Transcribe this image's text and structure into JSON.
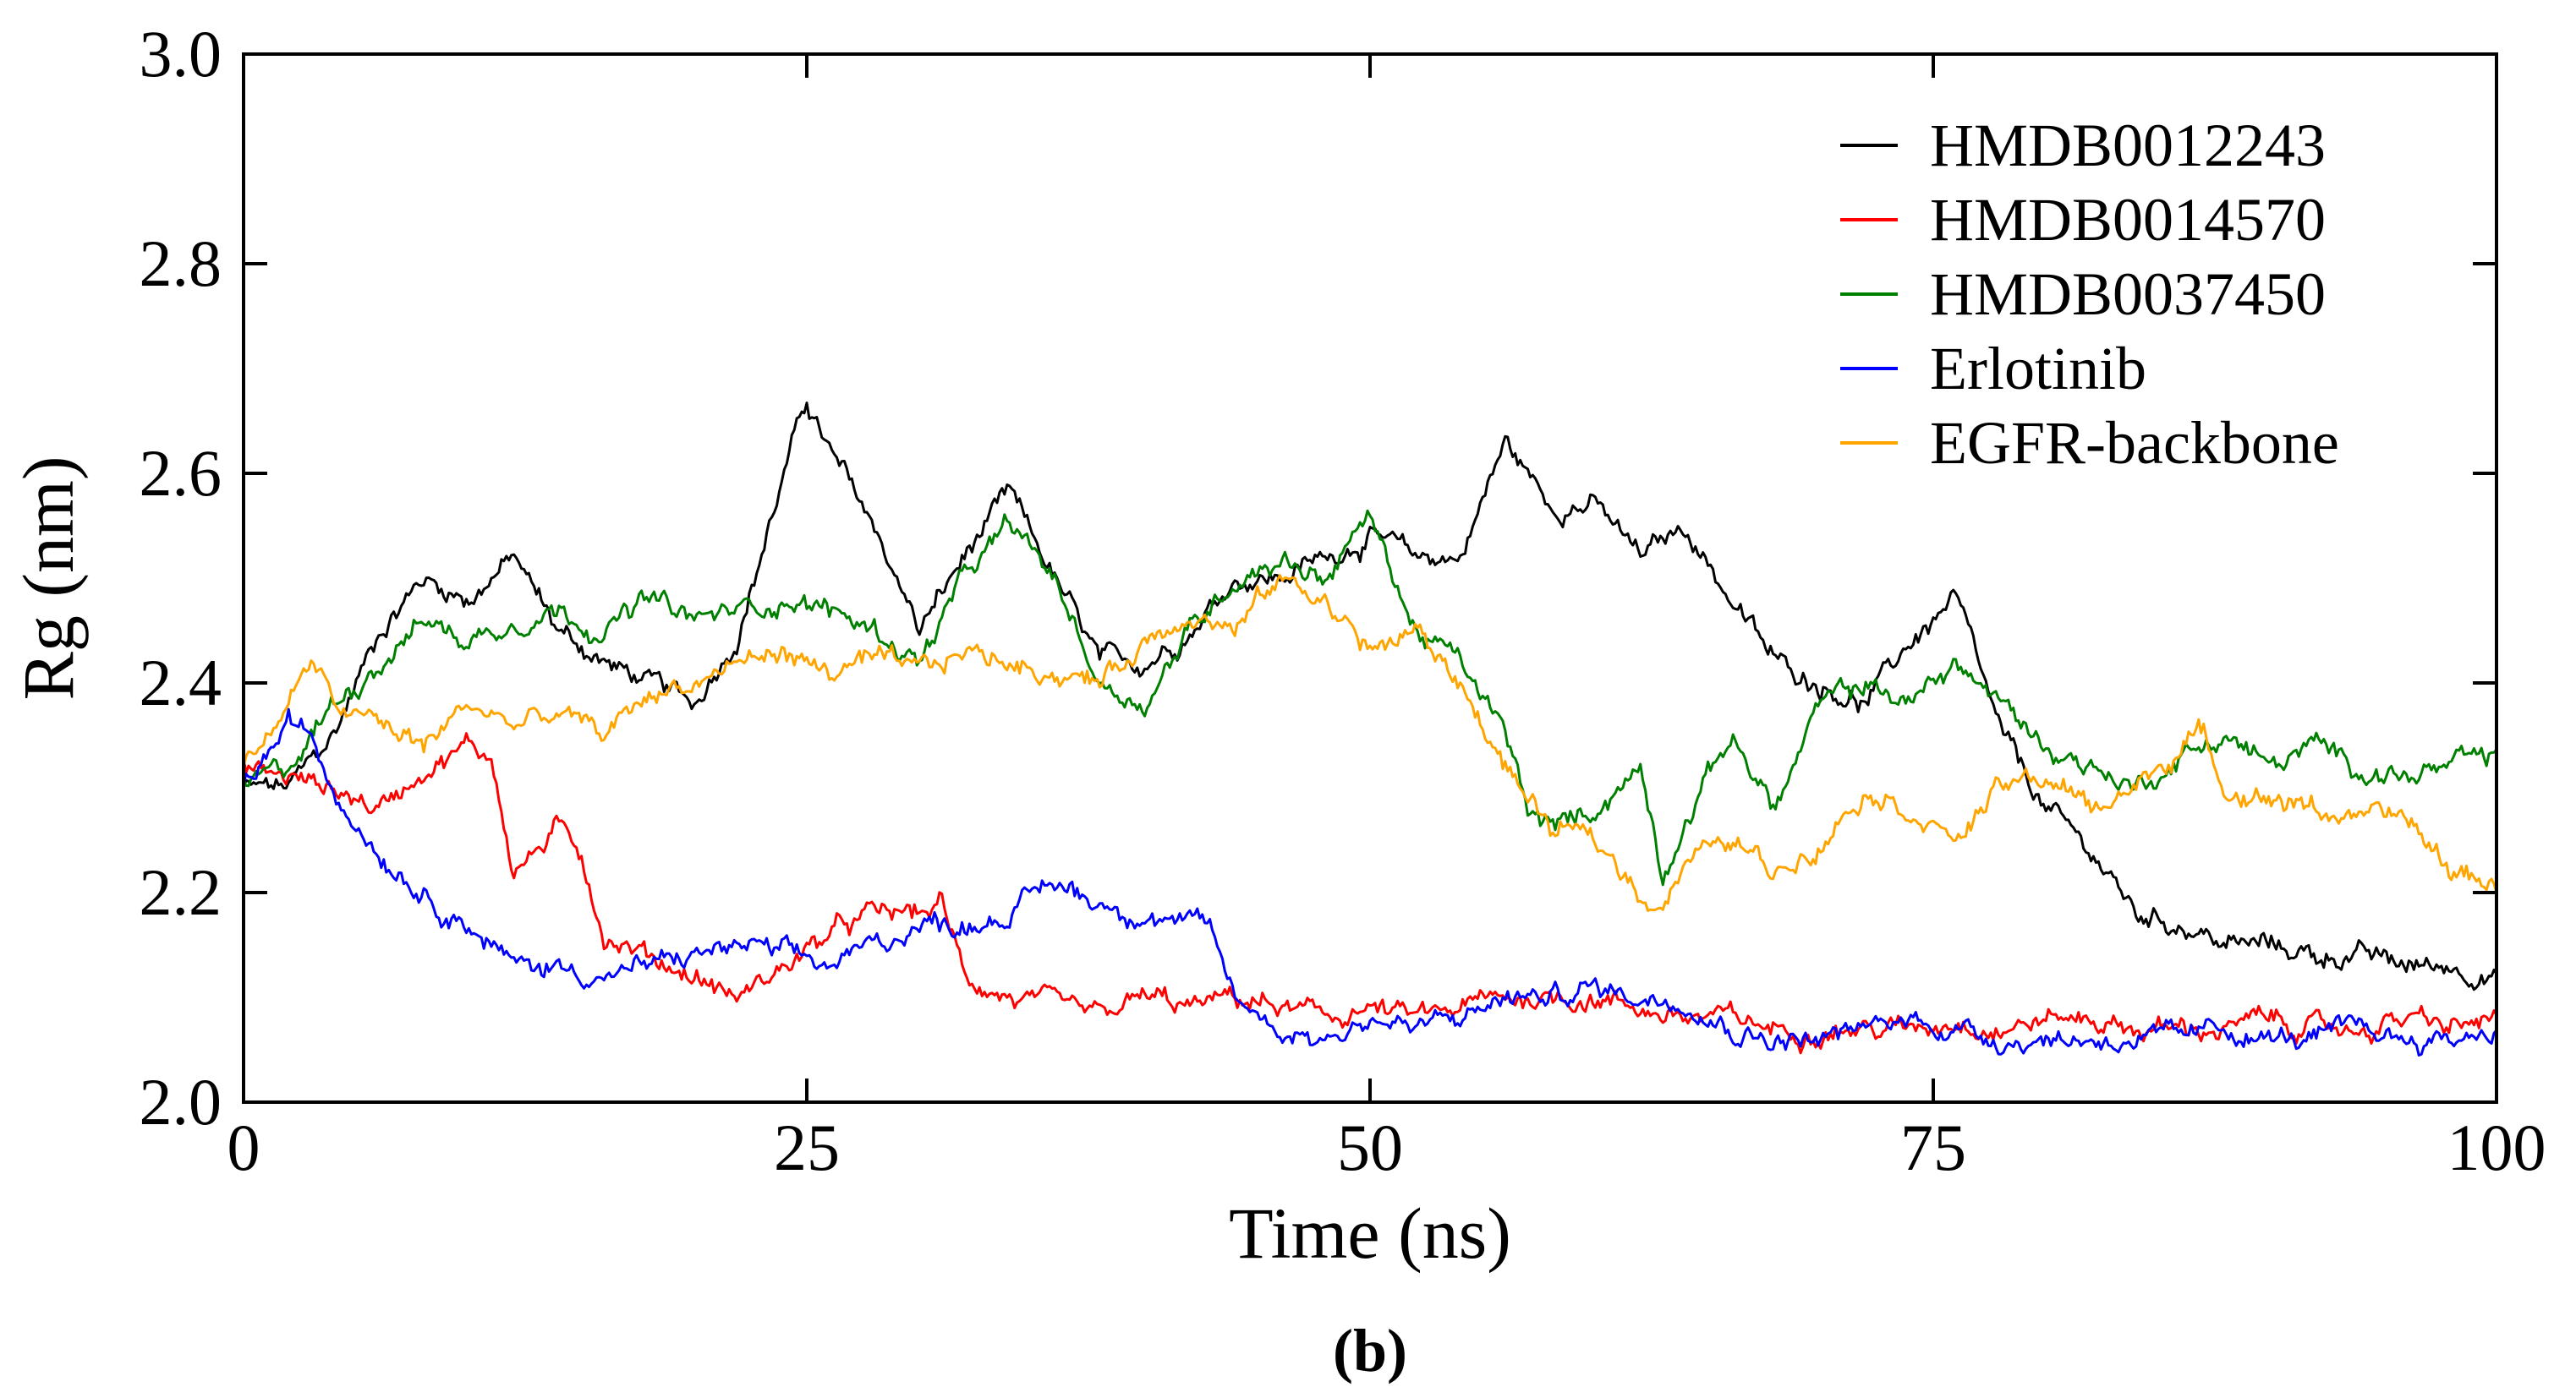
{
  "chart_data": {
    "type": "line",
    "title": "",
    "xlabel": "Time (ns)",
    "ylabel": "Rg (nm)",
    "caption": "(b)",
    "xlim": [
      0,
      100
    ],
    "ylim": [
      2.0,
      3.0
    ],
    "xticks": [
      0,
      25,
      50,
      75,
      100
    ],
    "xtick_labels": [
      "0",
      "25",
      "50",
      "75",
      "100"
    ],
    "yticks": [
      2.0,
      2.2,
      2.4,
      2.6,
      2.8,
      3.0
    ],
    "ytick_labels": [
      "2.0",
      "2.2",
      "2.4",
      "2.6",
      "2.8",
      "3.0"
    ],
    "grid": false,
    "legend_position": "top-right",
    "series": [
      {
        "name": "HMDB0012243",
        "color": "#000000",
        "x": [
          0,
          2,
          4,
          6,
          8,
          10,
          12,
          14,
          16,
          18,
          20,
          22,
          24,
          25,
          26,
          28,
          30,
          32,
          34,
          36,
          38,
          40,
          42,
          44,
          46,
          48,
          50,
          52,
          54,
          56,
          58,
          60,
          62,
          64,
          66,
          68,
          70,
          72,
          74,
          76,
          78,
          80,
          82,
          84,
          86,
          88,
          90,
          92,
          94,
          96,
          98,
          100
        ],
        "values": [
          2.3,
          2.3,
          2.35,
          2.45,
          2.5,
          2.48,
          2.52,
          2.45,
          2.42,
          2.4,
          2.38,
          2.45,
          2.6,
          2.67,
          2.62,
          2.55,
          2.45,
          2.52,
          2.58,
          2.5,
          2.42,
          2.42,
          2.45,
          2.5,
          2.5,
          2.52,
          2.54,
          2.52,
          2.52,
          2.63,
          2.57,
          2.57,
          2.52,
          2.55,
          2.48,
          2.42,
          2.4,
          2.38,
          2.44,
          2.48,
          2.35,
          2.28,
          2.24,
          2.18,
          2.17,
          2.15,
          2.15,
          2.14,
          2.14,
          2.13,
          2.13,
          2.12
        ]
      },
      {
        "name": "HMDB0014570",
        "color": "#ff0000",
        "x": [
          0,
          2,
          4,
          6,
          8,
          10,
          11,
          12,
          13,
          14,
          15,
          16,
          18,
          20,
          22,
          24,
          26,
          28,
          30,
          31,
          32,
          34,
          36,
          38,
          40,
          42,
          44,
          46,
          48,
          50,
          52,
          54,
          56,
          58,
          60,
          62,
          64,
          66,
          68,
          70,
          72,
          74,
          76,
          78,
          80,
          82,
          84,
          86,
          88,
          90,
          92,
          94,
          96,
          98,
          100
        ],
        "values": [
          2.32,
          2.31,
          2.3,
          2.28,
          2.32,
          2.34,
          2.33,
          2.22,
          2.24,
          2.26,
          2.24,
          2.16,
          2.14,
          2.12,
          2.1,
          2.13,
          2.16,
          2.18,
          2.18,
          2.19,
          2.12,
          2.1,
          2.09,
          2.08,
          2.1,
          2.09,
          2.1,
          2.09,
          2.08,
          2.09,
          2.08,
          2.09,
          2.1,
          2.1,
          2.1,
          2.09,
          2.08,
          2.08,
          2.07,
          2.07,
          2.07,
          2.07,
          2.08,
          2.07,
          2.08,
          2.08,
          2.07,
          2.07,
          2.07,
          2.08,
          2.07,
          2.07,
          2.08,
          2.07,
          2.08
        ]
      },
      {
        "name": "HMDB0037450",
        "color": "#008000",
        "x": [
          0,
          2,
          4,
          6,
          8,
          10,
          12,
          14,
          16,
          18,
          20,
          22,
          24,
          26,
          28,
          30,
          32,
          34,
          36,
          38,
          40,
          42,
          44,
          46,
          48,
          50,
          52,
          54,
          56,
          57,
          58,
          60,
          62,
          63,
          64,
          66,
          68,
          70,
          72,
          74,
          76,
          78,
          80,
          82,
          84,
          86,
          88,
          90,
          92,
          94,
          96,
          98,
          100
        ],
        "values": [
          2.3,
          2.32,
          2.38,
          2.42,
          2.46,
          2.44,
          2.46,
          2.47,
          2.45,
          2.48,
          2.46,
          2.47,
          2.48,
          2.47,
          2.45,
          2.42,
          2.5,
          2.55,
          2.5,
          2.4,
          2.38,
          2.45,
          2.5,
          2.52,
          2.5,
          2.56,
          2.45,
          2.42,
          2.35,
          2.28,
          2.26,
          2.28,
          2.32,
          2.22,
          2.27,
          2.35,
          2.28,
          2.38,
          2.4,
          2.38,
          2.42,
          2.38,
          2.34,
          2.32,
          2.3,
          2.33,
          2.35,
          2.32,
          2.34,
          2.32,
          2.31,
          2.32,
          2.33
        ]
      },
      {
        "name": "Erlotinib",
        "color": "#0000ff",
        "x": [
          0,
          1,
          2,
          3,
          4,
          6,
          8,
          10,
          12,
          14,
          16,
          18,
          20,
          22,
          24,
          26,
          28,
          30,
          32,
          34,
          36,
          38,
          40,
          42,
          43,
          44,
          46,
          48,
          50,
          52,
          54,
          56,
          58,
          60,
          62,
          64,
          66,
          68,
          70,
          72,
          74,
          76,
          78,
          80,
          82,
          84,
          86,
          88,
          90,
          92,
          94,
          96,
          98,
          100
        ],
        "values": [
          2.3,
          2.33,
          2.36,
          2.35,
          2.3,
          2.24,
          2.2,
          2.17,
          2.13,
          2.13,
          2.12,
          2.13,
          2.14,
          2.15,
          2.14,
          2.13,
          2.15,
          2.17,
          2.17,
          2.18,
          2.21,
          2.19,
          2.18,
          2.17,
          2.16,
          2.1,
          2.07,
          2.06,
          2.08,
          2.07,
          2.08,
          2.1,
          2.1,
          2.11,
          2.1,
          2.1,
          2.07,
          2.06,
          2.06,
          2.07,
          2.08,
          2.07,
          2.06,
          2.06,
          2.06,
          2.06,
          2.06,
          2.07,
          2.06,
          2.06,
          2.07,
          2.06,
          2.06,
          2.07
        ]
      },
      {
        "name": "EGFR-backbone",
        "color": "#ffa500",
        "x": [
          0,
          2,
          3,
          4,
          6,
          8,
          10,
          12,
          14,
          16,
          18,
          20,
          22,
          24,
          26,
          28,
          30,
          32,
          34,
          36,
          38,
          40,
          42,
          44,
          46,
          48,
          50,
          52,
          54,
          56,
          58,
          60,
          62,
          63,
          64,
          66,
          68,
          70,
          72,
          74,
          76,
          78,
          80,
          82,
          84,
          86,
          87,
          88,
          90,
          92,
          94,
          96,
          98,
          100
        ],
        "values": [
          2.32,
          2.38,
          2.42,
          2.38,
          2.36,
          2.34,
          2.38,
          2.36,
          2.37,
          2.35,
          2.39,
          2.4,
          2.42,
          2.43,
          2.41,
          2.42,
          2.41,
          2.43,
          2.42,
          2.41,
          2.4,
          2.44,
          2.47,
          2.45,
          2.5,
          2.48,
          2.43,
          2.45,
          2.4,
          2.32,
          2.26,
          2.25,
          2.2,
          2.19,
          2.23,
          2.25,
          2.22,
          2.25,
          2.3,
          2.28,
          2.25,
          2.3,
          2.31,
          2.28,
          2.3,
          2.34,
          2.35,
          2.3,
          2.29,
          2.28,
          2.27,
          2.27,
          2.22,
          2.21
        ]
      }
    ]
  }
}
